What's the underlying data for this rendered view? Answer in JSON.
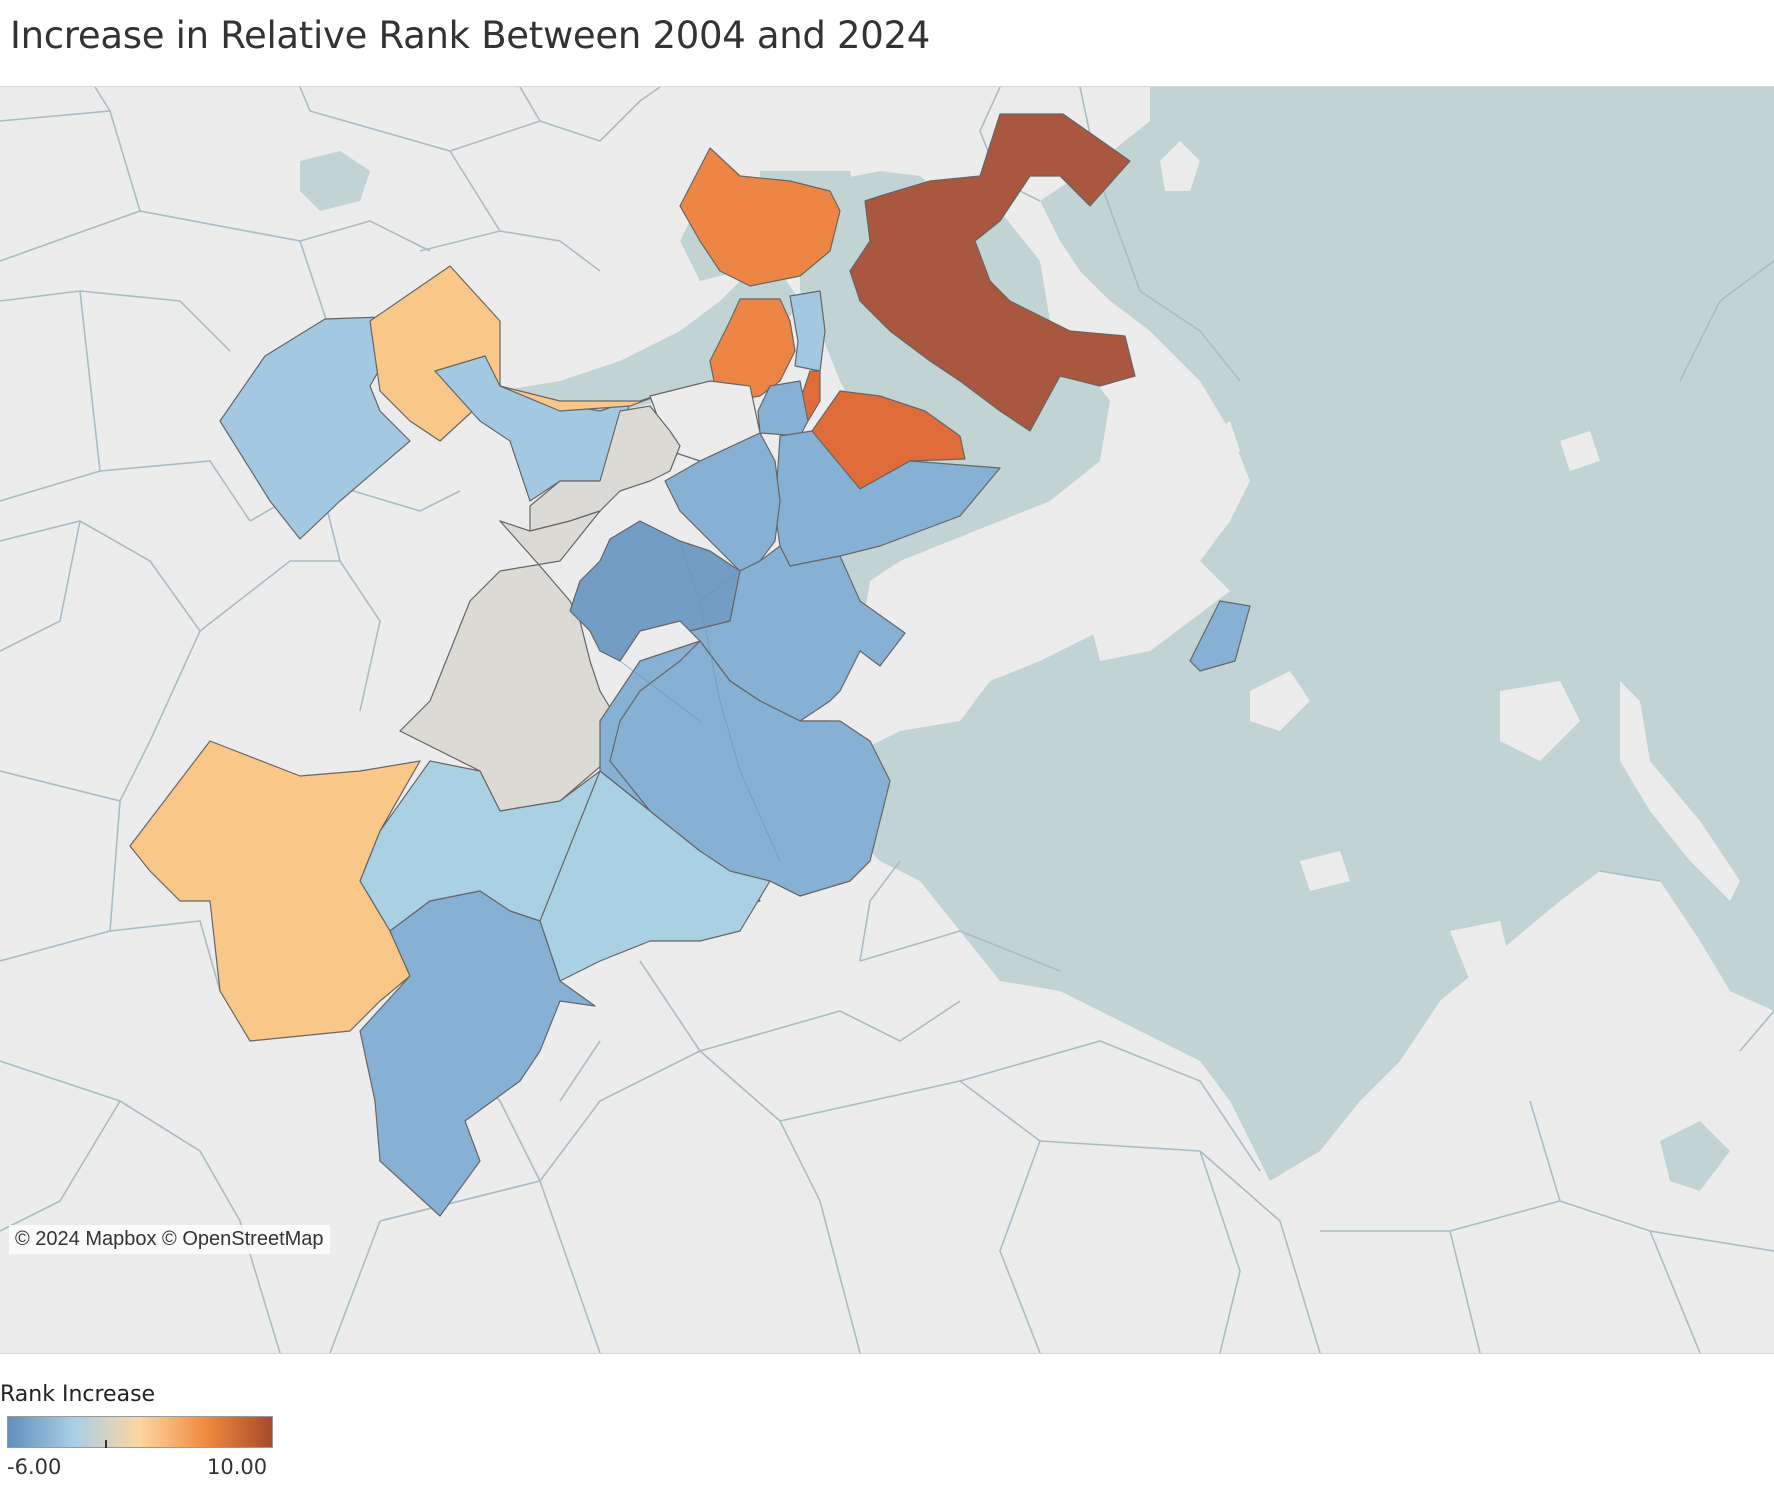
{
  "title": "Increase in Relative Rank Between 2004 and 2024",
  "attribution": "© 2024 Mapbox © OpenStreetMap",
  "legend": {
    "title": "Rank Increase",
    "min_label": "-6.00",
    "max_label": "10.00",
    "min": -6,
    "max": 10,
    "neutral": 0,
    "stops": [
      "#5f8fbd",
      "#a9cfe6",
      "#fdd6a0",
      "#f08a3e",
      "#a84b2c"
    ]
  },
  "colors": {
    "land": "#ececec",
    "water": "#c1d3d3",
    "roads": "#a9bcc4",
    "regions": {
      "dark-red": "#a9573e",
      "orange": "#ed8645",
      "dark-orange": "#e06c3a",
      "light-orange": "#f9c888",
      "light-blue": "#a3c8e2",
      "pale-blue": "#aad0e3",
      "mid-blue": "#86b1d5",
      "dark-blue": "#739dc5",
      "neutral-gray": "#dcdad4"
    }
  }
}
